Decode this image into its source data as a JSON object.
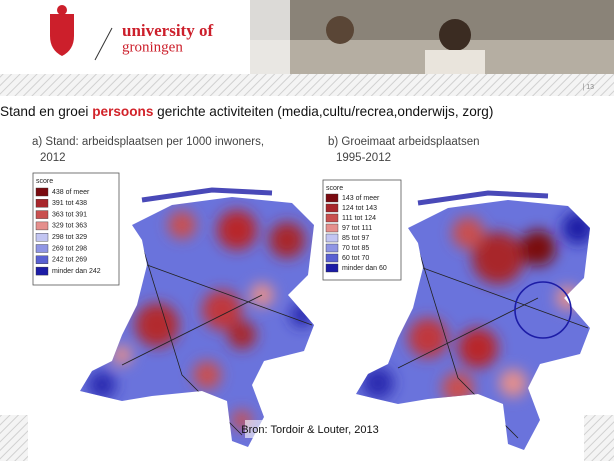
{
  "header": {
    "logo_line1": "university of",
    "logo_line2": "groningen",
    "page_number": "| 13"
  },
  "title": {
    "before": "Stand en groei ",
    "highlight": "persoons",
    "after": " gerichte activiteiten (media,cultu/recrea,onderwijs, zorg)"
  },
  "maps": [
    {
      "title_line1": "a) Stand: arbeidsplaatsen per 1000 inwoners,",
      "title_line2": "2012",
      "legend_title": "score",
      "legend": [
        {
          "label": "438 of meer",
          "color": "#7a0a10"
        },
        {
          "label": "391 tot 438",
          "color": "#a8262b"
        },
        {
          "label": "363 tot 391",
          "color": "#c9504f"
        },
        {
          "label": "329 tot 363",
          "color": "#e58f8c"
        },
        {
          "label": "298 tot 329",
          "color": "#c2c5f2"
        },
        {
          "label": "269 tot 298",
          "color": "#8f95e4"
        },
        {
          "label": "242 tot 269",
          "color": "#5960d2"
        },
        {
          "label": "minder dan 242",
          "color": "#1c1ca6"
        }
      ]
    },
    {
      "title_line1": "b) Groeimaat arbeidsplaatsen",
      "title_line2": "1995-2012",
      "legend_title": "score",
      "legend": [
        {
          "label": "143 of meer",
          "color": "#7a0a10"
        },
        {
          "label": "124 tot 143",
          "color": "#a8262b"
        },
        {
          "label": "111 tot 124",
          "color": "#c9504f"
        },
        {
          "label": "97 tot 111",
          "color": "#e58f8c"
        },
        {
          "label": "85 tot 97",
          "color": "#c2c5f2"
        },
        {
          "label": "70 tot 85",
          "color": "#8f95e4"
        },
        {
          "label": "60 tot 70",
          "color": "#5960d2"
        },
        {
          "label": "minder dan 60",
          "color": "#1c1ca6"
        }
      ]
    }
  ],
  "source": "Bron: Tordoir & Louter, 2013"
}
